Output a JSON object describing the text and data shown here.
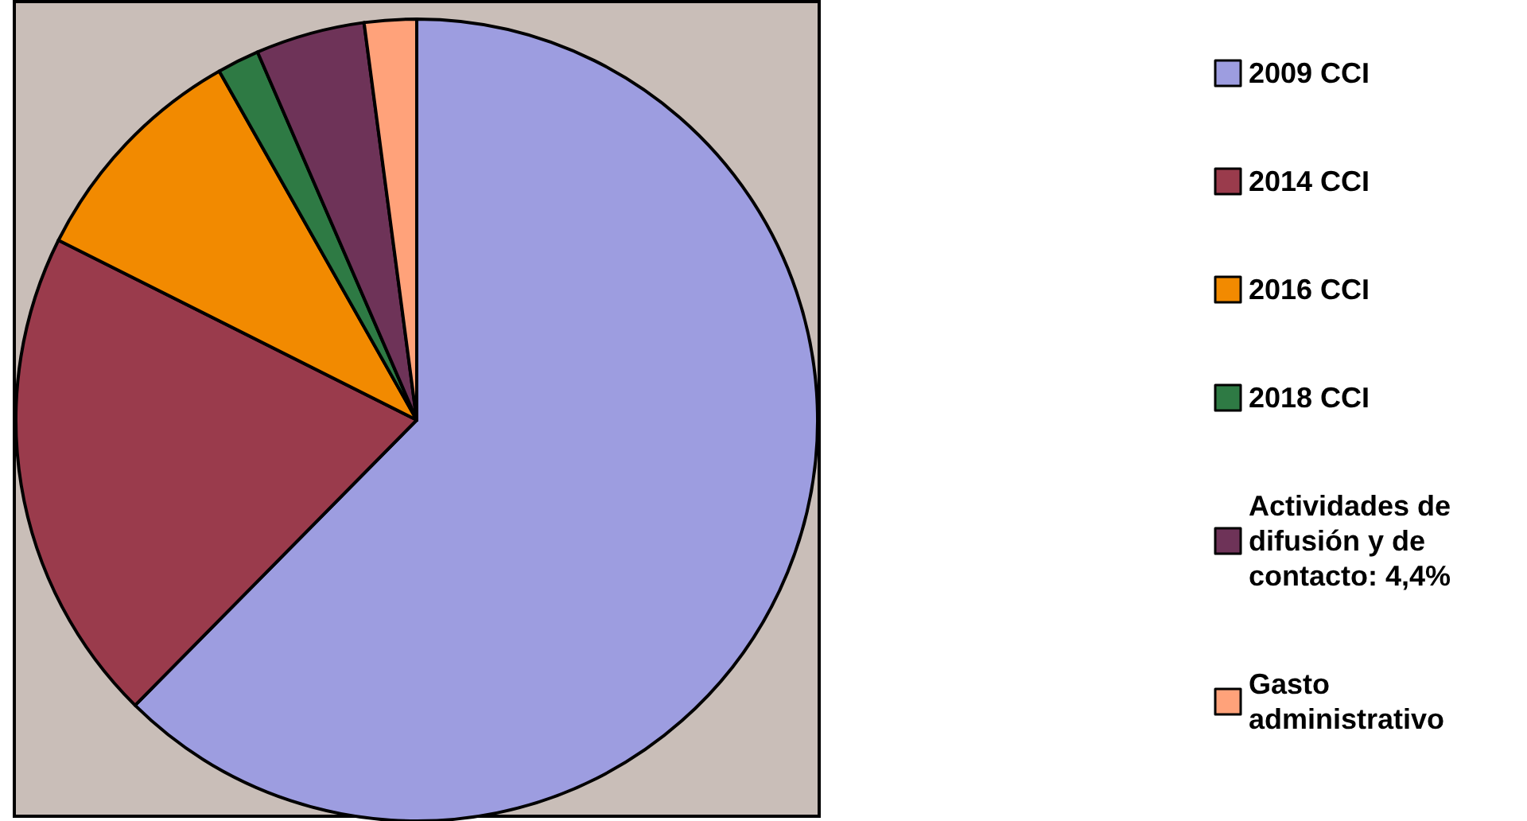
{
  "chart_data": {
    "type": "pie",
    "categories": [
      "2009 CCI",
      "2014 CCI",
      "2016 CCI",
      "2018 CCI",
      "Actividades de difusión y de contacto: 4,4%",
      "Gasto administrativo"
    ],
    "values": [
      62.4,
      20.0,
      9.4,
      1.7,
      4.4,
      2.1
    ],
    "colors": [
      "#9d9de0",
      "#9a3b4c",
      "#f28a00",
      "#2e7a44",
      "#6e3358",
      "#ffa27a"
    ],
    "legend": "right"
  }
}
